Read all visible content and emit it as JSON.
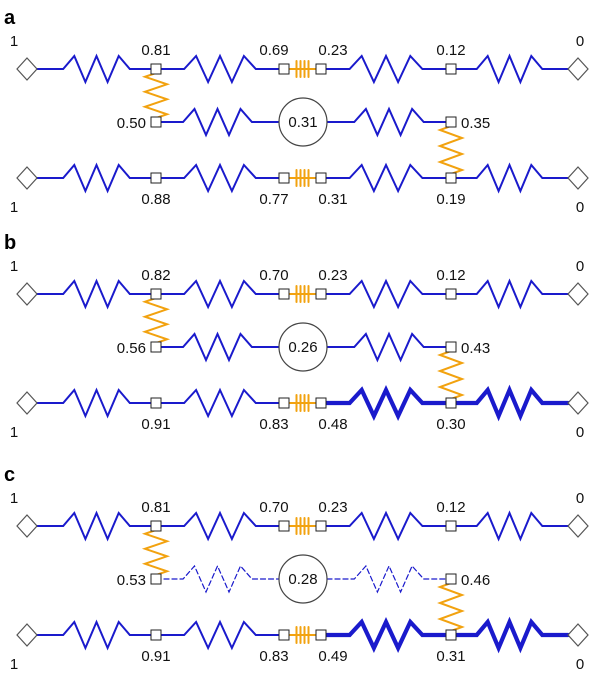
{
  "panels": [
    {
      "label": "a",
      "top_left_terminal": "1",
      "top_right_terminal": "0",
      "bottom_left_terminal": "1",
      "bottom_right_terminal": "0",
      "top": [
        "0.81",
        "0.69",
        "0.23",
        "0.12"
      ],
      "mid_left": "0.50",
      "center": "0.31",
      "mid_right": "0.35",
      "bottom": [
        "0.88",
        "0.77",
        "0.31",
        "0.19"
      ],
      "bottom_right_thick": false,
      "middle_dashed": false
    },
    {
      "label": "b",
      "top_left_terminal": "1",
      "top_right_terminal": "0",
      "bottom_left_terminal": "1",
      "bottom_right_terminal": "0",
      "top": [
        "0.82",
        "0.70",
        "0.23",
        "0.12"
      ],
      "mid_left": "0.56",
      "center": "0.26",
      "mid_right": "0.43",
      "bottom": [
        "0.91",
        "0.83",
        "0.48",
        "0.30"
      ],
      "bottom_right_thick": true,
      "middle_dashed": false
    },
    {
      "label": "c",
      "top_left_terminal": "1",
      "top_right_terminal": "0",
      "bottom_left_terminal": "1",
      "bottom_right_terminal": "0",
      "top": [
        "0.81",
        "0.70",
        "0.23",
        "0.12"
      ],
      "mid_left": "0.53",
      "center": "0.28",
      "mid_right": "0.46",
      "bottom": [
        "0.91",
        "0.83",
        "0.49",
        "0.31"
      ],
      "bottom_right_thick": true,
      "middle_dashed": true
    }
  ],
  "colors": {
    "resistor": "#1a1acc",
    "spring": "#f2a20f"
  }
}
